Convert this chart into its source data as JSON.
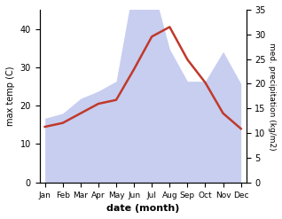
{
  "months": [
    "Jan",
    "Feb",
    "Mar",
    "Apr",
    "May",
    "Jun",
    "Jul",
    "Aug",
    "Sep",
    "Oct",
    "Nov",
    "Dec"
  ],
  "x": [
    0,
    1,
    2,
    3,
    4,
    5,
    6,
    7,
    8,
    9,
    10,
    11
  ],
  "temp": [
    14.5,
    15.5,
    18.0,
    20.5,
    21.5,
    29.5,
    38.0,
    40.5,
    32.0,
    26.0,
    18.0,
    14.0
  ],
  "precip": [
    13.0,
    14.0,
    17.0,
    18.5,
    20.5,
    40.5,
    40.5,
    27.0,
    20.5,
    20.5,
    26.5,
    20.0
  ],
  "temp_color": "#c0392b",
  "precip_fill_color": "#aab4e8",
  "precip_fill_alpha": 0.65,
  "xlabel": "date (month)",
  "ylabel_left": "max temp (C)",
  "ylabel_right": "med. precipitation (kg/m2)",
  "ylim_left": [
    0,
    45
  ],
  "ylim_right": [
    0,
    35
  ],
  "yticks_left": [
    0,
    10,
    20,
    30,
    40
  ],
  "yticks_right": [
    0,
    5,
    10,
    15,
    20,
    25,
    30,
    35
  ],
  "bg_color": "#ffffff",
  "line_width": 1.8,
  "precip_scale": 1.2857
}
